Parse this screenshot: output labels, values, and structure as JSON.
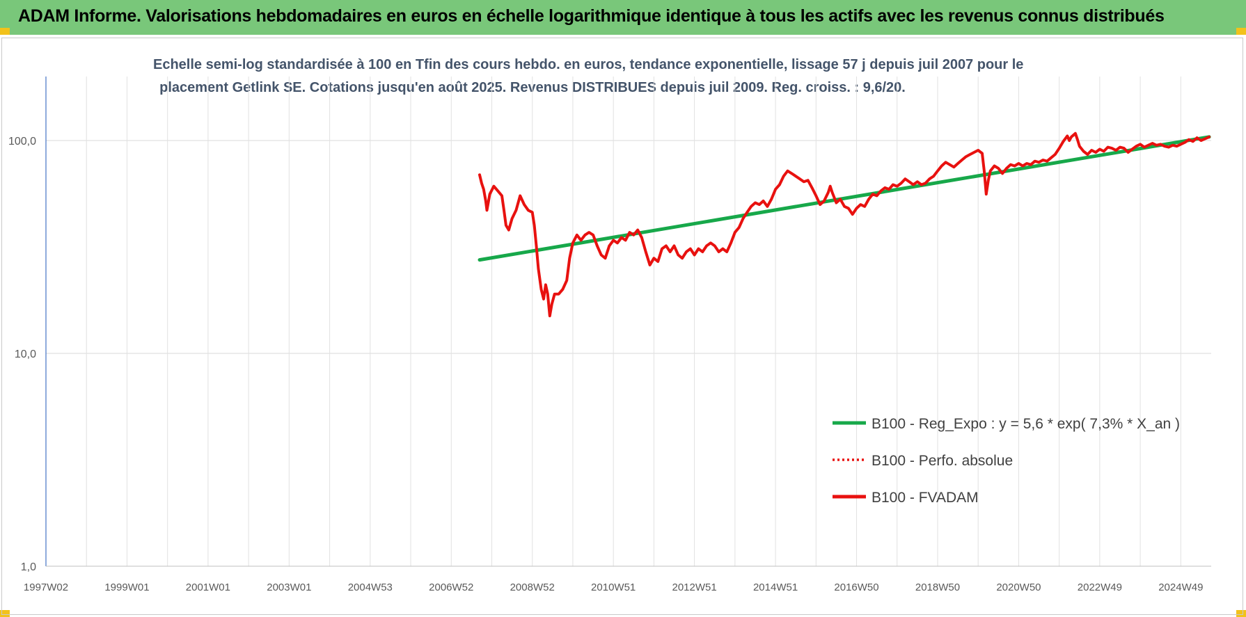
{
  "header": {
    "title": "ADAM Informe. Valorisations hebdomadaires en euros en échelle logarithmique identique à tous les actifs avec les revenus connus distribués"
  },
  "colors": {
    "banner": "#79c77a",
    "accent_corner": "#f2c21b",
    "trend": "#17a84a",
    "series": "#e8110f",
    "subtitle": "#44546a"
  },
  "chart_data": {
    "type": "line",
    "title_lines": [
      "Echelle semi-log standardisée à 100 en Tfin des cours hebdo. en euros, tendance exponentielle, lissage 57 j depuis juil 2007 pour le",
      "placement Getlink SE. Cotations jusqu'en août 2025. Revenus DISTRIBUES depuis juil 2009. Reg. croiss. : 9,6/20."
    ],
    "y_scale": "log",
    "ylim": [
      1,
      200
    ],
    "y_ticks": [
      {
        "value": 100,
        "label": "100,0"
      },
      {
        "value": 10,
        "label": "10,0"
      },
      {
        "value": 1,
        "label": "1,0"
      }
    ],
    "x_ticks": [
      "1997W02",
      "1999W01",
      "2001W01",
      "2003W01",
      "2004W53",
      "2006W52",
      "2008W52",
      "2010W51",
      "2012W51",
      "2014W51",
      "2016W50",
      "2018W50",
      "2020W50",
      "2022W49",
      "2024W49"
    ],
    "x_tick_years": [
      1997.0,
      1999.0,
      2001.0,
      2003.0,
      2005.0,
      2007.0,
      2009.0,
      2011.0,
      2013.0,
      2015.0,
      2017.0,
      2019.0,
      2021.0,
      2023.0,
      2025.0
    ],
    "xlim": [
      1997.0,
      2025.75
    ],
    "grid": true,
    "legend_position": "bottom-right",
    "legend": [
      {
        "label": "B100 - Reg_Expo : y = 5,6 * exp( 7,3% *  X_an )",
        "style": "solid-thick",
        "color": "#17a84a"
      },
      {
        "label": "B100 - Perfo. absolue",
        "style": "dotted",
        "color": "#e8110f"
      },
      {
        "label": "B100 - FVADAM",
        "style": "solid-thick",
        "color": "#e8110f"
      }
    ],
    "series": [
      {
        "name": "B100 - Reg_Expo : y = 5,6 * exp( 7,3% *  X_an )",
        "kind": "trend",
        "points": [
          [
            2007.7,
            27.5
          ],
          [
            2025.7,
            104
          ]
        ]
      },
      {
        "name": "B100 - FVADAM",
        "kind": "main",
        "points": [
          [
            2007.7,
            69
          ],
          [
            2007.75,
            63
          ],
          [
            2007.8,
            59
          ],
          [
            2007.85,
            52
          ],
          [
            2007.88,
            47
          ],
          [
            2007.95,
            56
          ],
          [
            2008.05,
            61
          ],
          [
            2008.15,
            58
          ],
          [
            2008.25,
            55
          ],
          [
            2008.3,
            47
          ],
          [
            2008.35,
            40
          ],
          [
            2008.42,
            38
          ],
          [
            2008.5,
            43
          ],
          [
            2008.6,
            47
          ],
          [
            2008.7,
            55
          ],
          [
            2008.8,
            50
          ],
          [
            2008.9,
            47
          ],
          [
            2009.0,
            46
          ],
          [
            2009.05,
            40
          ],
          [
            2009.1,
            32
          ],
          [
            2009.15,
            25
          ],
          [
            2009.22,
            20
          ],
          [
            2009.28,
            18
          ],
          [
            2009.33,
            21
          ],
          [
            2009.38,
            19
          ],
          [
            2009.43,
            15
          ],
          [
            2009.48,
            17
          ],
          [
            2009.55,
            19
          ],
          [
            2009.65,
            19
          ],
          [
            2009.75,
            20
          ],
          [
            2009.85,
            22
          ],
          [
            2009.92,
            28
          ],
          [
            2010.0,
            33
          ],
          [
            2010.1,
            36
          ],
          [
            2010.2,
            34
          ],
          [
            2010.3,
            36
          ],
          [
            2010.4,
            37
          ],
          [
            2010.5,
            36
          ],
          [
            2010.6,
            32
          ],
          [
            2010.7,
            29
          ],
          [
            2010.8,
            28
          ],
          [
            2010.9,
            32
          ],
          [
            2011.0,
            34
          ],
          [
            2011.1,
            33
          ],
          [
            2011.2,
            35
          ],
          [
            2011.3,
            34
          ],
          [
            2011.4,
            37
          ],
          [
            2011.5,
            36
          ],
          [
            2011.6,
            38
          ],
          [
            2011.7,
            35
          ],
          [
            2011.8,
            30
          ],
          [
            2011.9,
            26
          ],
          [
            2012.0,
            28
          ],
          [
            2012.1,
            27
          ],
          [
            2012.2,
            31
          ],
          [
            2012.3,
            32
          ],
          [
            2012.4,
            30
          ],
          [
            2012.5,
            32
          ],
          [
            2012.6,
            29
          ],
          [
            2012.7,
            28
          ],
          [
            2012.8,
            30
          ],
          [
            2012.9,
            31
          ],
          [
            2013.0,
            29
          ],
          [
            2013.1,
            31
          ],
          [
            2013.2,
            30
          ],
          [
            2013.3,
            32
          ],
          [
            2013.4,
            33
          ],
          [
            2013.5,
            32
          ],
          [
            2013.6,
            30
          ],
          [
            2013.7,
            31
          ],
          [
            2013.8,
            30
          ],
          [
            2013.9,
            33
          ],
          [
            2014.0,
            37
          ],
          [
            2014.1,
            39
          ],
          [
            2014.2,
            43
          ],
          [
            2014.3,
            46
          ],
          [
            2014.4,
            49
          ],
          [
            2014.5,
            51
          ],
          [
            2014.6,
            50
          ],
          [
            2014.7,
            52
          ],
          [
            2014.8,
            49
          ],
          [
            2014.9,
            53
          ],
          [
            2015.0,
            59
          ],
          [
            2015.1,
            62
          ],
          [
            2015.2,
            68
          ],
          [
            2015.3,
            72
          ],
          [
            2015.4,
            70
          ],
          [
            2015.5,
            68
          ],
          [
            2015.6,
            66
          ],
          [
            2015.7,
            64
          ],
          [
            2015.8,
            65
          ],
          [
            2015.9,
            60
          ],
          [
            2016.0,
            55
          ],
          [
            2016.1,
            50
          ],
          [
            2016.2,
            52
          ],
          [
            2016.3,
            57
          ],
          [
            2016.35,
            61
          ],
          [
            2016.4,
            57
          ],
          [
            2016.5,
            51
          ],
          [
            2016.6,
            53
          ],
          [
            2016.7,
            49
          ],
          [
            2016.8,
            48
          ],
          [
            2016.9,
            45
          ],
          [
            2017.0,
            48
          ],
          [
            2017.1,
            50
          ],
          [
            2017.2,
            49
          ],
          [
            2017.3,
            53
          ],
          [
            2017.4,
            56
          ],
          [
            2017.5,
            55
          ],
          [
            2017.6,
            58
          ],
          [
            2017.7,
            60
          ],
          [
            2017.8,
            59
          ],
          [
            2017.9,
            62
          ],
          [
            2018.0,
            61
          ],
          [
            2018.1,
            63
          ],
          [
            2018.2,
            66
          ],
          [
            2018.3,
            64
          ],
          [
            2018.4,
            62
          ],
          [
            2018.5,
            64
          ],
          [
            2018.6,
            62
          ],
          [
            2018.7,
            63
          ],
          [
            2018.8,
            66
          ],
          [
            2018.9,
            68
          ],
          [
            2019.0,
            72
          ],
          [
            2019.1,
            76
          ],
          [
            2019.2,
            79
          ],
          [
            2019.3,
            77
          ],
          [
            2019.4,
            75
          ],
          [
            2019.5,
            78
          ],
          [
            2019.6,
            81
          ],
          [
            2019.7,
            84
          ],
          [
            2019.8,
            86
          ],
          [
            2019.9,
            88
          ],
          [
            2020.0,
            90
          ],
          [
            2020.1,
            87
          ],
          [
            2020.15,
            72
          ],
          [
            2020.2,
            56
          ],
          [
            2020.25,
            65
          ],
          [
            2020.3,
            72
          ],
          [
            2020.4,
            76
          ],
          [
            2020.5,
            74
          ],
          [
            2020.6,
            70
          ],
          [
            2020.7,
            74
          ],
          [
            2020.8,
            77
          ],
          [
            2020.9,
            76
          ],
          [
            2021.0,
            78
          ],
          [
            2021.1,
            76
          ],
          [
            2021.2,
            78
          ],
          [
            2021.3,
            77
          ],
          [
            2021.4,
            80
          ],
          [
            2021.5,
            79
          ],
          [
            2021.6,
            81
          ],
          [
            2021.7,
            80
          ],
          [
            2021.8,
            83
          ],
          [
            2021.9,
            86
          ],
          [
            2022.0,
            92
          ],
          [
            2022.1,
            99
          ],
          [
            2022.2,
            105
          ],
          [
            2022.25,
            100
          ],
          [
            2022.3,
            104
          ],
          [
            2022.4,
            108
          ],
          [
            2022.45,
            101
          ],
          [
            2022.5,
            94
          ],
          [
            2022.6,
            89
          ],
          [
            2022.7,
            86
          ],
          [
            2022.8,
            90
          ],
          [
            2022.9,
            88
          ],
          [
            2023.0,
            91
          ],
          [
            2023.1,
            89
          ],
          [
            2023.2,
            93
          ],
          [
            2023.3,
            92
          ],
          [
            2023.4,
            90
          ],
          [
            2023.5,
            93
          ],
          [
            2023.6,
            92
          ],
          [
            2023.7,
            88
          ],
          [
            2023.8,
            91
          ],
          [
            2023.9,
            94
          ],
          [
            2024.0,
            96
          ],
          [
            2024.1,
            93
          ],
          [
            2024.2,
            95
          ],
          [
            2024.3,
            97
          ],
          [
            2024.4,
            95
          ],
          [
            2024.5,
            96
          ],
          [
            2024.6,
            94
          ],
          [
            2024.7,
            93
          ],
          [
            2024.8,
            95
          ],
          [
            2024.9,
            94
          ],
          [
            2025.0,
            96
          ],
          [
            2025.1,
            98
          ],
          [
            2025.2,
            101
          ],
          [
            2025.3,
            99
          ],
          [
            2025.4,
            103
          ],
          [
            2025.5,
            100
          ],
          [
            2025.6,
            102
          ],
          [
            2025.7,
            104
          ]
        ]
      }
    ]
  }
}
